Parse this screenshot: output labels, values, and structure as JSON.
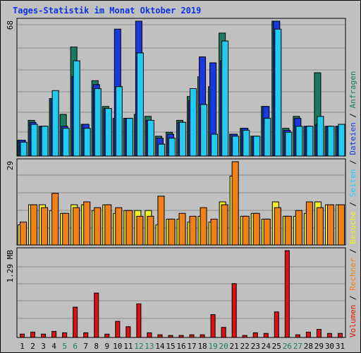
{
  "title": "Tages-Statistik im Monat Oktober 2019",
  "chart_data": [
    {
      "type": "bar",
      "panel": "top",
      "max_label": "68",
      "ylim": [
        0,
        68
      ],
      "categories": [
        "1",
        "2",
        "3",
        "4",
        "5",
        "6",
        "7",
        "8",
        "9",
        "10",
        "11",
        "12",
        "13",
        "14",
        "15",
        "16",
        "17",
        "18",
        "19",
        "20",
        "21",
        "22",
        "23",
        "24",
        "25",
        "26",
        "27",
        "28",
        "29",
        "30",
        "31"
      ],
      "series": [
        {
          "name": "Anfragen",
          "color": "#1a7b63",
          "values": [
            8,
            18,
            15,
            29,
            21,
            55,
            16,
            38,
            25,
            19,
            19,
            21,
            20,
            10,
            12,
            18,
            30,
            40,
            35,
            62,
            11,
            14,
            10,
            25,
            68,
            14,
            20,
            15,
            42,
            15,
            15
          ]
        },
        {
          "name": "Dateien",
          "color": "#1838e0",
          "values": [
            8,
            17,
            15,
            29,
            15,
            40,
            16,
            36,
            24,
            64,
            19,
            68,
            18,
            9,
            11,
            17,
            28,
            50,
            47,
            48,
            11,
            14,
            10,
            25,
            68,
            13,
            19,
            15,
            16,
            15,
            15
          ]
        },
        {
          "name": "Seiten",
          "color": "#22ccf0",
          "values": [
            7,
            16,
            15,
            33,
            14,
            48,
            14,
            34,
            24,
            35,
            19,
            52,
            18,
            6,
            9,
            17,
            34,
            26,
            11,
            58,
            10,
            13,
            10,
            19,
            64,
            12,
            15,
            15,
            20,
            15,
            16
          ]
        }
      ]
    },
    {
      "type": "bar",
      "panel": "middle",
      "max_label": "29",
      "ylim": [
        0,
        29
      ],
      "categories": [
        "1",
        "2",
        "3",
        "4",
        "5",
        "6",
        "7",
        "8",
        "9",
        "10",
        "11",
        "12",
        "13",
        "14",
        "15",
        "16",
        "17",
        "18",
        "19",
        "20",
        "21",
        "22",
        "23",
        "24",
        "25",
        "26",
        "27",
        "28",
        "29",
        "30",
        "31"
      ],
      "series": [
        {
          "name": "Besuche",
          "color": "#f0f028",
          "values": [
            7,
            14,
            14,
            12,
            11,
            14,
            14,
            12,
            14,
            11,
            12,
            12,
            12,
            7,
            9,
            9,
            8,
            10,
            8,
            15,
            24,
            10,
            11,
            9,
            15,
            10,
            10,
            11,
            15,
            14,
            14
          ]
        },
        {
          "name": "Rechner",
          "color": "#f08018",
          "values": [
            8,
            14,
            13,
            18,
            11,
            13,
            15,
            13,
            14,
            13,
            12,
            10,
            10,
            17,
            9,
            11,
            10,
            13,
            9,
            14,
            29,
            10,
            11,
            9,
            13,
            10,
            12,
            15,
            13,
            14,
            14
          ]
        }
      ]
    },
    {
      "type": "bar",
      "panel": "bottom",
      "max_label": "1.29 MB",
      "ylim": [
        0,
        1.29
      ],
      "categories": [
        "1",
        "2",
        "3",
        "4",
        "5",
        "6",
        "7",
        "8",
        "9",
        "10",
        "11",
        "12",
        "13",
        "14",
        "15",
        "16",
        "17",
        "18",
        "19",
        "20",
        "21",
        "22",
        "23",
        "24",
        "25",
        "26",
        "27",
        "28",
        "29",
        "30",
        "31"
      ],
      "series": [
        {
          "name": "Volumen",
          "color": "#e01010",
          "values": [
            0.05,
            0.08,
            0.05,
            0.09,
            0.07,
            0.45,
            0.07,
            0.66,
            0.05,
            0.24,
            0.16,
            0.5,
            0.07,
            0.04,
            0.03,
            0.03,
            0.04,
            0.04,
            0.34,
            0.15,
            0.8,
            0.03,
            0.07,
            0.06,
            0.38,
            1.29,
            0.04,
            0.08,
            0.12,
            0.06,
            0.06
          ]
        }
      ]
    }
  ],
  "legend": {
    "right_top": [
      "Anfragen",
      "Dateien",
      "Seiten"
    ],
    "right_middle": [
      "Besuche",
      "Rechner"
    ],
    "right_bottom": [
      "Volumen"
    ],
    "separator": "/"
  },
  "x_label_colors": {
    "weekday": "#000000",
    "weekend": "#1a7b63"
  },
  "weekend_days": [
    "5",
    "6",
    "12",
    "13",
    "19",
    "20",
    "26",
    "27"
  ]
}
